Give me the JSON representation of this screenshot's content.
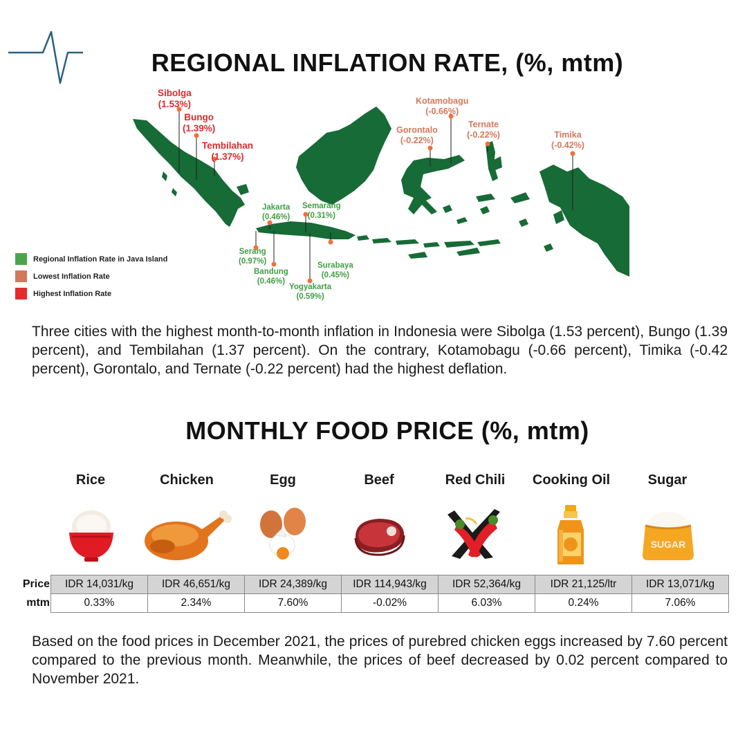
{
  "header": {
    "title": "REGIONAL INFLATION RATE, (%, mtm)",
    "logo_icon": "pulse-line-icon"
  },
  "map": {
    "cities": [
      {
        "name": "Sibolga",
        "value": "(1.53%)",
        "group": "highest"
      },
      {
        "name": "Bungo",
        "value": "(1.39%)",
        "group": "highest"
      },
      {
        "name": "Tembilahan",
        "value": "(1.37%)",
        "group": "highest"
      },
      {
        "name": "Kotamobagu",
        "value": "(-0.66%)",
        "group": "lowest"
      },
      {
        "name": "Gorontalo",
        "value": "(-0.22%)",
        "group": "lowest"
      },
      {
        "name": "Ternate",
        "value": "(-0.22%)",
        "group": "lowest"
      },
      {
        "name": "Timika",
        "value": "(-0.42%)",
        "group": "lowest"
      },
      {
        "name": "Jakarta",
        "value": "(0.46%)",
        "group": "java"
      },
      {
        "name": "Semarang",
        "value": "(0.31%)",
        "group": "java"
      },
      {
        "name": "Serang",
        "value": "(0.97%)",
        "group": "java"
      },
      {
        "name": "Bandung",
        "value": "(0.46%)",
        "group": "java"
      },
      {
        "name": "Surabaya",
        "value": "(0.45%)",
        "group": "java"
      },
      {
        "name": "Yogyakarta",
        "value": "(0.59%)",
        "group": "java"
      }
    ],
    "legend": [
      {
        "label": "Regional Inflation Rate in Java Island",
        "color": "#4aa54a"
      },
      {
        "label": "Lowest Inflation Rate",
        "color": "#d4775a"
      },
      {
        "label": "Highest Inflation Rate",
        "color": "#e52b2b"
      }
    ],
    "land_color": "#176b36"
  },
  "paragraph1": "Three cities with the highest month-to-month inflation in Indonesia were Sibolga (1.53 percent), Bungo (1.39 percent), and Tembilahan (1.37 percent). On the contrary, Kotamobagu (-0.66 percent), Timika (-0.42 percent), Gorontalo, and Ternate (-0.22 percent) had the highest deflation.",
  "food_section": {
    "title": "MONTHLY FOOD PRICE (%, mtm)",
    "row_labels": {
      "price": "Price",
      "mtm": "mtm"
    },
    "items": [
      {
        "name": "Rice",
        "icon": "rice-bowl-icon",
        "price": "IDR 14,031/kg",
        "mtm": "0.33%"
      },
      {
        "name": "Chicken",
        "icon": "roast-chicken-icon",
        "price": "IDR 46,651/kg",
        "mtm": "2.34%"
      },
      {
        "name": "Egg",
        "icon": "egg-icon",
        "price": "IDR 24,389/kg",
        "mtm": "7.60%"
      },
      {
        "name": "Beef",
        "icon": "beef-steak-icon",
        "price": "IDR 114,943/kg",
        "mtm": "-0.02%"
      },
      {
        "name": "Red Chili",
        "icon": "chili-pepper-icon",
        "price": "IDR 52,364/kg",
        "mtm": "6.03%"
      },
      {
        "name": "Cooking Oil",
        "icon": "oil-bottle-icon",
        "price": "IDR 21,125/ltr",
        "mtm": "0.24%"
      },
      {
        "name": "Sugar",
        "icon": "sugar-sack-icon",
        "icon_text": "SUGAR",
        "price": "IDR 13,071/kg",
        "mtm": "7.06%"
      }
    ]
  },
  "paragraph2": "Based on the food prices in December 2021, the prices of purebred chicken eggs increased by 7.60 percent compared to the previous month. Meanwhile, the prices of beef decreased by 0.02 percent compared to November 2021."
}
